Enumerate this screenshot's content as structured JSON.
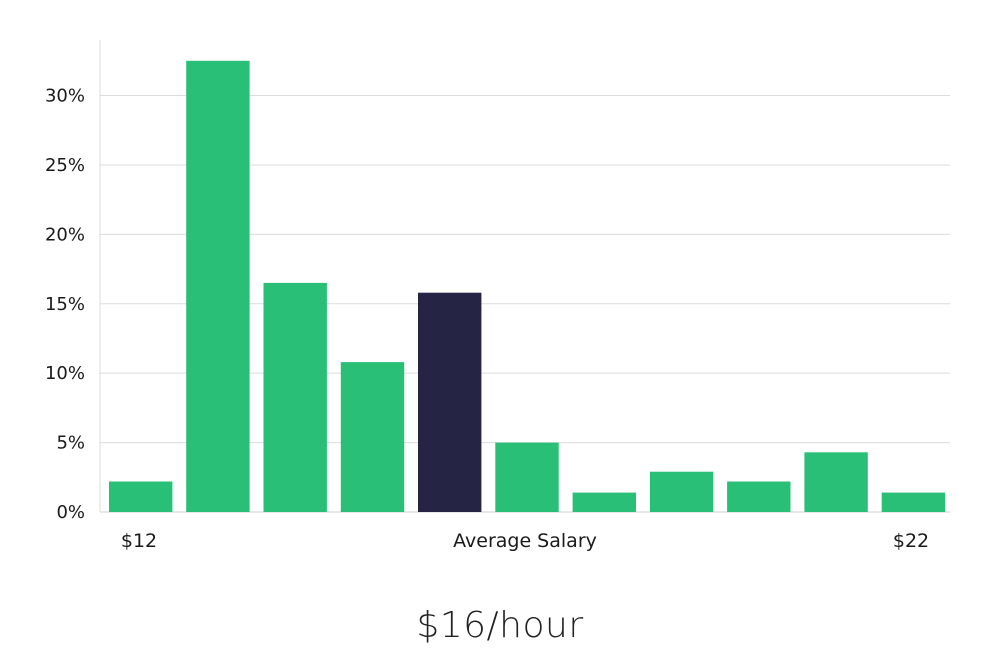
{
  "headline": "$16/hour",
  "chart_data": {
    "type": "bar",
    "categories": [
      "$12",
      "",
      "",
      "",
      "",
      "",
      "",
      "",
      "",
      "",
      "$22"
    ],
    "values": [
      2.2,
      32.5,
      16.5,
      10.8,
      15.8,
      5.0,
      1.4,
      2.9,
      2.2,
      4.3,
      1.4
    ],
    "highlight_index": 4,
    "ylim": [
      0,
      34
    ],
    "yticks": [
      0,
      5,
      10,
      15,
      20,
      25,
      30
    ],
    "ytick_suffix": "%",
    "x_labels": {
      "left": "$12",
      "center": "Average Salary",
      "right": "$22"
    },
    "grid": true,
    "colors": {
      "bar": "#2abf76",
      "highlight": "#262444",
      "grid": "#dcdcdc",
      "axis": "#cfcfcf"
    }
  }
}
